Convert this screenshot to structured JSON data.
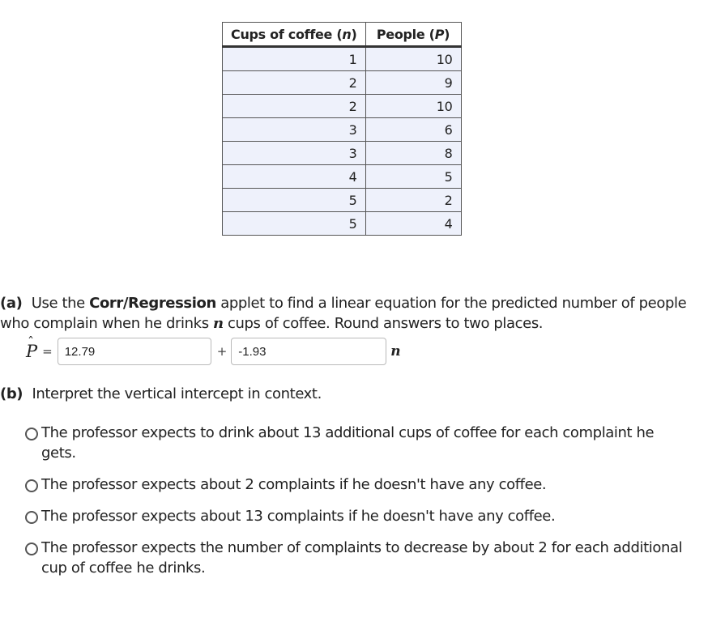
{
  "table": {
    "headers": {
      "n": {
        "prefix": "Cups of coffee (",
        "var": "n",
        "suffix": ")"
      },
      "p": {
        "prefix": "People (",
        "var": "P",
        "suffix": ")"
      }
    },
    "rows": [
      {
        "n": "1",
        "p": "10"
      },
      {
        "n": "2",
        "p": "9"
      },
      {
        "n": "2",
        "p": "10"
      },
      {
        "n": "3",
        "p": "6"
      },
      {
        "n": "3",
        "p": "8"
      },
      {
        "n": "4",
        "p": "5"
      },
      {
        "n": "5",
        "p": "2"
      },
      {
        "n": "5",
        "p": "4"
      }
    ]
  },
  "part_a": {
    "label": "(a)",
    "text_before": "Use the",
    "applet": "Corr/Regression",
    "text_mid": "applet to find a linear equation for the predicted number of people who complain when he drinks",
    "var": "n",
    "text_after": "cups of coffee. Round answers to two places.",
    "equation": {
      "lhs": "P",
      "equals": "=",
      "intercept_value": "12.79",
      "plus": "+",
      "slope_value": "-1.93",
      "rhs_var": "n"
    }
  },
  "part_b": {
    "label": "(b)",
    "prompt": "Interpret the vertical intercept in context.",
    "options": [
      "The professor expects to drink about 13 additional cups of coffee for each complaint he gets.",
      "The professor expects about 2 complaints if he doesn't have any coffee.",
      "The professor expects about 13 complaints if he doesn't have any coffee.",
      "The professor expects the number of complaints to decrease by about 2 for each additional cup of coffee he drinks."
    ]
  }
}
